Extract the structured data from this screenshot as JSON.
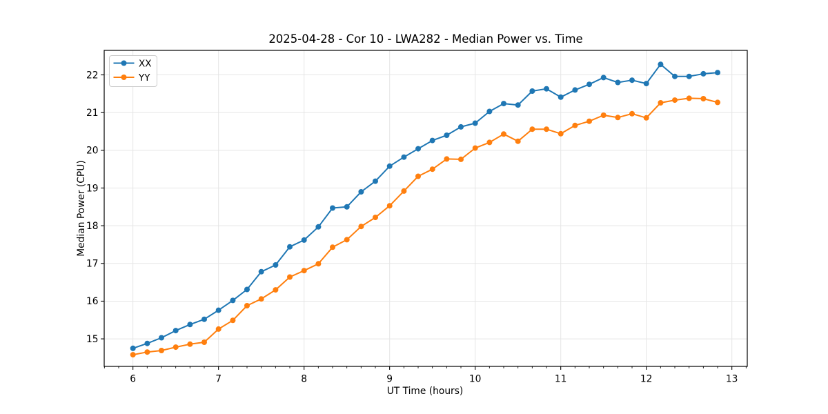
{
  "chart_data": {
    "type": "line",
    "title": "2025-04-28 - Cor 10 - LWA282 - Median Power vs. Time",
    "xlabel": "UT Time (hours)",
    "ylabel": "Median Power (CPU)",
    "grid": true,
    "legend_position": "upper-left",
    "x_ticks": [
      6,
      7,
      8,
      9,
      10,
      11,
      12,
      13
    ],
    "y_ticks": [
      15,
      16,
      17,
      18,
      19,
      20,
      21,
      22
    ],
    "xlim": [
      5.664,
      13.18
    ],
    "ylim": [
      14.27,
      22.65
    ],
    "minor_tick_step": 0.1666667,
    "x": [
      6.0,
      6.167,
      6.333,
      6.5,
      6.667,
      6.833,
      7.0,
      7.167,
      7.333,
      7.5,
      7.667,
      7.833,
      8.0,
      8.167,
      8.333,
      8.5,
      8.667,
      8.833,
      9.0,
      9.167,
      9.333,
      9.5,
      9.667,
      9.833,
      10.0,
      10.167,
      10.333,
      10.5,
      10.667,
      10.833,
      11.0,
      11.167,
      11.333,
      11.5,
      11.667,
      11.833,
      12.0,
      12.167,
      12.333,
      12.5,
      12.667,
      12.833
    ],
    "series": [
      {
        "name": "XX",
        "color": "#1f77b4",
        "values": [
          14.75,
          14.88,
          15.03,
          15.22,
          15.38,
          15.52,
          15.76,
          16.02,
          16.31,
          16.78,
          16.96,
          17.44,
          17.62,
          17.97,
          18.47,
          18.5,
          18.9,
          19.18,
          19.58,
          19.82,
          20.04,
          20.26,
          20.4,
          20.62,
          20.72,
          21.03,
          21.24,
          21.2,
          21.57,
          21.63,
          21.41,
          21.6,
          21.75,
          21.93,
          21.8,
          21.86,
          21.77,
          22.28,
          21.96,
          21.96,
          22.03,
          22.06
        ]
      },
      {
        "name": "YY",
        "color": "#ff7f0e",
        "values": [
          14.58,
          14.65,
          14.69,
          14.78,
          14.86,
          14.91,
          15.26,
          15.49,
          15.88,
          16.06,
          16.3,
          16.64,
          16.81,
          16.99,
          17.43,
          17.63,
          17.98,
          18.22,
          18.53,
          18.92,
          19.31,
          19.5,
          19.77,
          19.76,
          20.06,
          20.21,
          20.43,
          20.24,
          20.56,
          20.56,
          20.44,
          20.66,
          20.77,
          20.93,
          20.87,
          20.97,
          20.86,
          21.26,
          21.33,
          21.38,
          21.37,
          21.27
        ]
      }
    ],
    "style": {
      "grid_color": "#e5e5e5",
      "spine_color": "#000000",
      "background": "#ffffff",
      "legend_border": "#cccccc"
    }
  }
}
